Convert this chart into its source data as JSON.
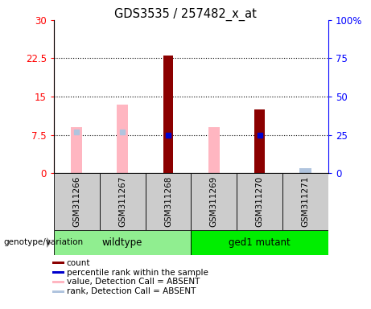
{
  "title": "GDS3535 / 257482_x_at",
  "samples": [
    "GSM311266",
    "GSM311267",
    "GSM311268",
    "GSM311269",
    "GSM311270",
    "GSM311271"
  ],
  "count_values": [
    null,
    null,
    23.0,
    null,
    12.5,
    null
  ],
  "percentile_values": [
    null,
    null,
    7.5,
    null,
    7.5,
    null
  ],
  "absent_value_bars": [
    9.0,
    13.5,
    null,
    9.0,
    null,
    null
  ],
  "absent_rank_bars": [
    null,
    null,
    null,
    null,
    null,
    1.0
  ],
  "absent_rank_markers": [
    8.0,
    8.0,
    null,
    null,
    null,
    null
  ],
  "ylim_left": [
    0,
    30
  ],
  "ylim_right": [
    0,
    100
  ],
  "yticks_left": [
    0,
    7.5,
    15,
    22.5,
    30
  ],
  "ytick_labels_left": [
    "0",
    "7.5",
    "15",
    "22.5",
    "30"
  ],
  "yticks_right": [
    0,
    25,
    50,
    75,
    100
  ],
  "ytick_labels_right": [
    "0",
    "25",
    "50",
    "75",
    "100%"
  ],
  "group_label": "genotype/variation",
  "absent_bar_color": "#FFB6C1",
  "absent_rank_color": "#B0C4DE",
  "count_color": "#8B0000",
  "percentile_color": "#0000CD",
  "groups_def": [
    {
      "name": "wildtype",
      "start": 0,
      "end": 2,
      "color": "#90EE90"
    },
    {
      "name": "ged1 mutant",
      "start": 3,
      "end": 5,
      "color": "#00EE00"
    }
  ],
  "legend_items": [
    {
      "label": "count",
      "color": "#8B0000"
    },
    {
      "label": "percentile rank within the sample",
      "color": "#0000CD"
    },
    {
      "label": "value, Detection Call = ABSENT",
      "color": "#FFB6C1"
    },
    {
      "label": "rank, Detection Call = ABSENT",
      "color": "#B0C4DE"
    }
  ]
}
